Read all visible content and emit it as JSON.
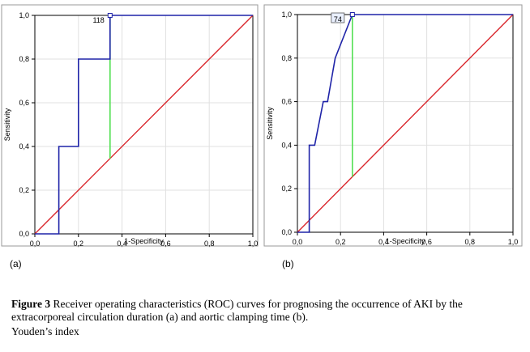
{
  "chart_data": [
    {
      "type": "line",
      "panel_label": "(a)",
      "xlabel": "1-Specificity",
      "ylabel": "Sensitivity",
      "xlim": [
        0,
        1
      ],
      "ylim": [
        0,
        1
      ],
      "xticks": [
        "0,0",
        "0,2",
        "0,4",
        "0,6",
        "0,8",
        "1,0"
      ],
      "yticks": [
        "0,0",
        "0,2",
        "0,4",
        "0,6",
        "0,8",
        "1,0"
      ],
      "grid": true,
      "roc_points": [
        [
          0,
          0
        ],
        [
          0.11,
          0
        ],
        [
          0.11,
          0.4
        ],
        [
          0.2,
          0.4
        ],
        [
          0.2,
          0.8
        ],
        [
          0.345,
          0.8
        ],
        [
          0.345,
          1.0
        ],
        [
          1.0,
          1.0
        ]
      ],
      "reference_line": [
        [
          0,
          0
        ],
        [
          1,
          1
        ]
      ],
      "youden_x": 0.345,
      "cutoff_label": "118",
      "colors": {
        "roc": "#1f24a8",
        "reference": "#d9262c",
        "youden": "#52e052"
      }
    },
    {
      "type": "line",
      "panel_label": "(b)",
      "xlabel": "1-Specificity",
      "ylabel": "Sensitivity",
      "xlim": [
        0,
        1
      ],
      "ylim": [
        0,
        1
      ],
      "xticks": [
        "0,0",
        "0,2",
        "0,4",
        "0,6",
        "0,8",
        "1,0"
      ],
      "yticks": [
        "0,0",
        "0,2",
        "0,4",
        "0,6",
        "0,8",
        "1,0"
      ],
      "grid": true,
      "roc_points": [
        [
          0,
          0
        ],
        [
          0.055,
          0
        ],
        [
          0.055,
          0.4
        ],
        [
          0.08,
          0.4
        ],
        [
          0.12,
          0.6
        ],
        [
          0.14,
          0.6
        ],
        [
          0.175,
          0.8
        ],
        [
          0.255,
          1.0
        ],
        [
          1.0,
          1.0
        ]
      ],
      "reference_line": [
        [
          0,
          0
        ],
        [
          1,
          1
        ]
      ],
      "youden_x": 0.255,
      "cutoff_label": "74",
      "colors": {
        "roc": "#1f24a8",
        "reference": "#d9262c",
        "youden": "#52e052"
      }
    }
  ],
  "caption": {
    "label": "Figure 3",
    "text": "  Receiver operating characteristics (ROC) curves for prognosing the occurrence of AKI by the extracorporeal circulation duration (a) and aortic clamping time (b).",
    "note": "Youden’s index"
  }
}
